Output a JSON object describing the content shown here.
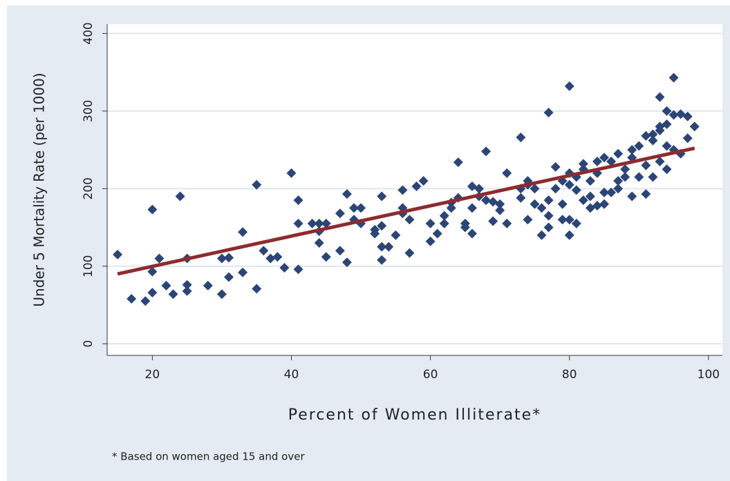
{
  "chart_data": {
    "type": "scatter",
    "x_label": "Percent of Women Illiterate*",
    "y_label": "Under 5 Mortality Rate (per 1000)",
    "note": "* Based on women aged 15 and over",
    "xlim": [
      13.5,
      102
    ],
    "ylim": [
      -15,
      412
    ],
    "xticks": [
      20,
      40,
      60,
      80,
      100
    ],
    "yticks": [
      0,
      100,
      200,
      300,
      400
    ],
    "grid": true,
    "series": [
      {
        "color": "#2c4577",
        "x": [
          15,
          17,
          19,
          20,
          20,
          20,
          21,
          22,
          23,
          24,
          25,
          25,
          25,
          28,
          30,
          30,
          31,
          31,
          33,
          33,
          35,
          35,
          36,
          37,
          38,
          39,
          40,
          41,
          41,
          41,
          43,
          44,
          44,
          44,
          45,
          45,
          47,
          47,
          48,
          48,
          49,
          49,
          50,
          50,
          52,
          52,
          53,
          53,
          53,
          53,
          54,
          55,
          56,
          56,
          56,
          57,
          57,
          58,
          59,
          60,
          60,
          61,
          62,
          62,
          63,
          63,
          64,
          64,
          65,
          65,
          66,
          66,
          66,
          67,
          67,
          68,
          68,
          69,
          69,
          70,
          70,
          71,
          71,
          73,
          73,
          73,
          74,
          74,
          74,
          75,
          75,
          76,
          76,
          77,
          77,
          77,
          77,
          78,
          78,
          79,
          79,
          79,
          80,
          80,
          80,
          80,
          80,
          81,
          81,
          81,
          82,
          82,
          82,
          83,
          83,
          83,
          84,
          84,
          84,
          85,
          85,
          85,
          86,
          86,
          87,
          87,
          87,
          88,
          88,
          89,
          89,
          89,
          90,
          90,
          91,
          91,
          91,
          92,
          92,
          92,
          93,
          93,
          93,
          93,
          94,
          94,
          94,
          94,
          95,
          95,
          95,
          96,
          96,
          97,
          97,
          98
        ],
        "values": [
          115,
          58,
          55,
          173,
          93,
          66,
          110,
          75,
          64,
          190,
          110,
          76,
          68,
          75,
          64,
          110,
          111,
          86,
          144,
          92,
          205,
          71,
          120,
          110,
          112,
          98,
          220,
          185,
          155,
          96,
          155,
          155,
          145,
          130,
          112,
          155,
          168,
          120,
          193,
          105,
          175,
          160,
          155,
          175,
          147,
          142,
          190,
          125,
          108,
          152,
          125,
          140,
          198,
          168,
          175,
          117,
          160,
          203,
          210,
          132,
          155,
          142,
          155,
          165,
          175,
          182,
          234,
          188,
          155,
          150,
          142,
          175,
          203,
          200,
          190,
          248,
          185,
          158,
          183,
          180,
          172,
          220,
          155,
          266,
          200,
          188,
          205,
          210,
          160,
          200,
          180,
          140,
          175,
          298,
          185,
          165,
          150,
          228,
          200,
          210,
          180,
          160,
          332,
          220,
          205,
          160,
          140,
          215,
          198,
          155,
          185,
          225,
          232,
          175,
          190,
          210,
          178,
          235,
          220,
          195,
          180,
          240,
          235,
          195,
          245,
          200,
          210,
          225,
          215,
          190,
          240,
          250,
          255,
          215,
          193,
          230,
          268,
          262,
          215,
          270,
          318,
          280,
          275,
          235,
          300,
          283,
          255,
          225,
          343,
          295,
          250,
          296,
          245,
          293,
          265,
          280
        ]
      }
    ],
    "fit_line": {
      "color": "#8e2b2e",
      "x": [
        15,
        98
      ],
      "values": [
        90,
        252
      ]
    }
  }
}
